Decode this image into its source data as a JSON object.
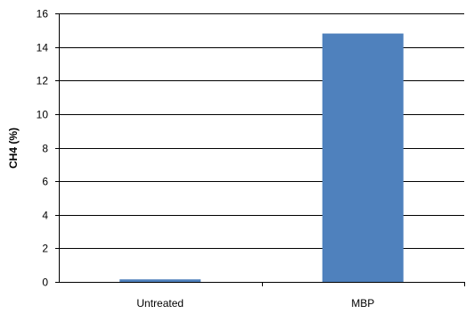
{
  "chart_data": {
    "type": "bar",
    "title": "",
    "xlabel": "",
    "ylabel": "CH4 (%)",
    "categories": [
      "Untreated",
      "MBP"
    ],
    "values": [
      0.15,
      14.8
    ],
    "ylim": [
      0,
      16
    ],
    "yticks": [
      0,
      2,
      4,
      6,
      8,
      10,
      12,
      14,
      16
    ],
    "grid": true,
    "legend": "none",
    "bar_color": "#4F81BD",
    "grid_color": "#000000"
  }
}
